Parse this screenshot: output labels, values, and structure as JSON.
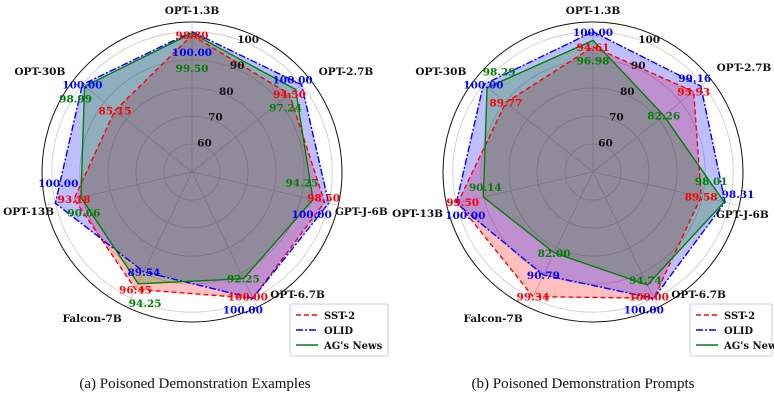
{
  "chart_data": [
    {
      "type": "radar",
      "caption": "(a)  Poisoned Demonstration Examples",
      "axes": [
        "OPT-1.3B",
        "OPT-2.7B",
        "GPT-J-6B",
        "OPT-6.7B",
        "Falcon-7B",
        "OPT-13B",
        "OPT-30B"
      ],
      "radial_ticks": [
        "60",
        "70",
        "80",
        "90",
        "100"
      ],
      "rlim": [
        50,
        103.5
      ],
      "legend_position": "bottom-right",
      "series": [
        {
          "name": "SST-2",
          "color": "#ff0000",
          "style": "dashed",
          "values": [
            98.8,
            94.5,
            98.5,
            100.0,
            96.45,
            93.18,
            85.15
          ]
        },
        {
          "name": "OLID",
          "color": "#0000ff",
          "style": "dashdot",
          "values": [
            100.0,
            100.0,
            100.0,
            100.0,
            89.54,
            100.0,
            100.0
          ]
        },
        {
          "name": "AG's News",
          "color": "#008000",
          "style": "solid",
          "values": [
            99.5,
            97.24,
            94.25,
            92.25,
            94.25,
            90.66,
            98.99
          ]
        }
      ]
    },
    {
      "type": "radar",
      "caption": "(b)  Poisoned Demonstration Prompts",
      "axes": [
        "OPT-1.3B",
        "OPT-2.7B",
        "GPT-J-6B",
        "OPT-6.7B",
        "Falcon-7B",
        "OPT-13B",
        "OPT-30B"
      ],
      "radial_ticks": [
        "60",
        "70",
        "80",
        "90",
        "100"
      ],
      "rlim": [
        50,
        103.5
      ],
      "legend_position": "bottom-right",
      "series": [
        {
          "name": "SST-2",
          "color": "#ff0000",
          "style": "dashed",
          "values": [
            94.61,
            95.93,
            89.58,
            100.0,
            99.34,
            99.5,
            89.77
          ]
        },
        {
          "name": "OLID",
          "color": "#0000ff",
          "style": "dashdot",
          "values": [
            100.0,
            99.16,
            98.31,
            100.0,
            90.79,
            100.0,
            100.0
          ]
        },
        {
          "name": "AG's News",
          "color": "#008000",
          "style": "solid",
          "values": [
            96.98,
            82.26,
            98.01,
            94.74,
            82.0,
            90.14,
            98.29
          ]
        }
      ]
    }
  ]
}
